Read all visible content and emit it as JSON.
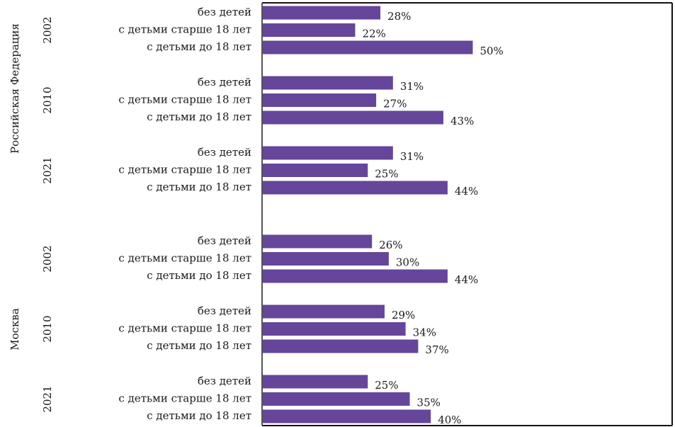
{
  "chart_data": {
    "type": "bar",
    "orientation": "horizontal",
    "title": "",
    "xlabel": "",
    "ylabel": "",
    "unit": "%",
    "xlim": [
      0,
      100
    ],
    "bar_color": "#65469b",
    "groups": [
      {
        "region": "Российская Федерация",
        "years": [
          {
            "year": "2002",
            "categories": [
              "без детей",
              "с детьми старше 18 лет",
              "с детьми до 18 лет"
            ],
            "values": [
              28,
              22,
              50
            ],
            "labels": [
              "28%",
              "22%",
              "50%"
            ]
          },
          {
            "year": "2010",
            "categories": [
              "без детей",
              "с детьми старше 18 лет",
              "с детьми до 18 лет"
            ],
            "values": [
              31,
              27,
              43
            ],
            "labels": [
              "31%",
              "27%",
              "43%"
            ]
          },
          {
            "year": "2021",
            "categories": [
              "без детей",
              "с детьми старше 18 лет",
              "с детьми до 18 лет"
            ],
            "values": [
              31,
              25,
              44
            ],
            "labels": [
              "31%",
              "25%",
              "44%"
            ]
          }
        ]
      },
      {
        "region": "Москва",
        "years": [
          {
            "year": "2002",
            "categories": [
              "без детей",
              "с детьми старше 18 лет",
              "с детьми до 18 лет"
            ],
            "values": [
              26,
              30,
              44
            ],
            "labels": [
              "26%",
              "30%",
              "44%"
            ]
          },
          {
            "year": "2010",
            "categories": [
              "без детей",
              "с детьми старше 18 лет",
              "с детьми до 18 лет"
            ],
            "values": [
              29,
              34,
              37
            ],
            "labels": [
              "29%",
              "34%",
              "37%"
            ]
          },
          {
            "year": "2021",
            "categories": [
              "без детей",
              "с детьми старше 18 лет",
              "с детьми до 18 лет"
            ],
            "values": [
              25,
              35,
              40
            ],
            "labels": [
              "25%",
              "35%",
              "40%"
            ]
          }
        ]
      }
    ]
  }
}
